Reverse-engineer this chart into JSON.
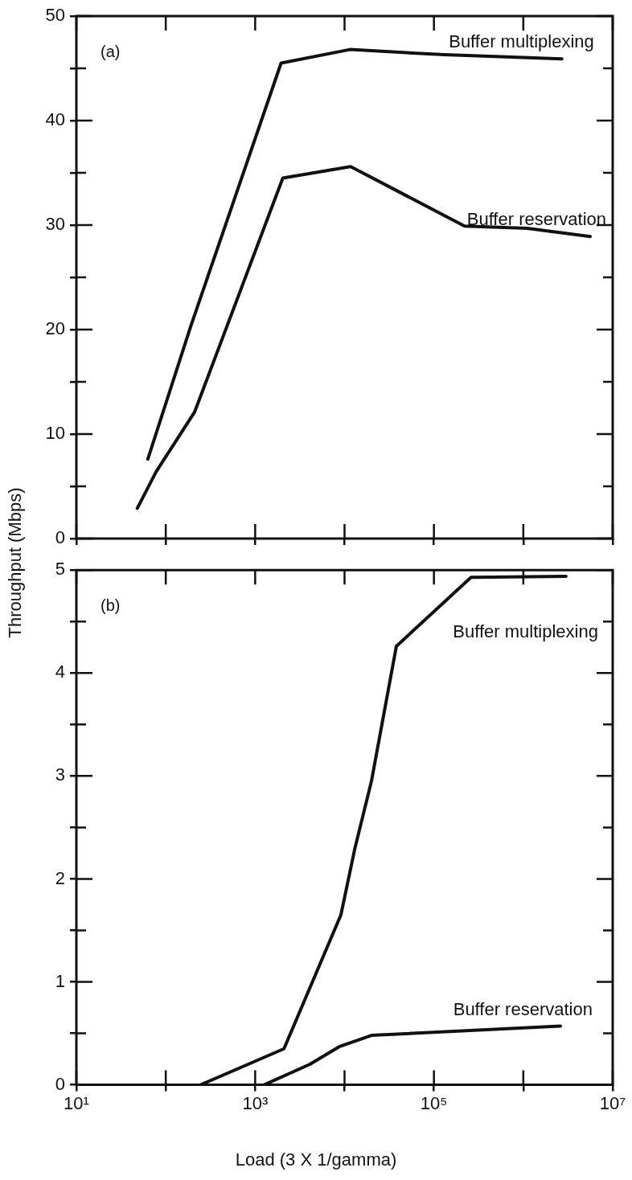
{
  "chart_data": [
    {
      "type": "line",
      "annotations": [
        "(a)"
      ],
      "ylabel": "Throughput (Mbps)",
      "log": "x",
      "grid": false,
      "legend": "right",
      "tick_labels": "y",
      "marker": "none",
      "line_style": "solid",
      "xlim": [
        10,
        10000000
      ],
      "xticks": [
        {
          "value": 10,
          "label": null
        },
        {
          "value": 100,
          "label": null
        },
        {
          "value": 1000,
          "label": null
        },
        {
          "value": 10000,
          "label": null
        },
        {
          "value": 100000,
          "label": null
        },
        {
          "value": 1000000,
          "label": null
        },
        {
          "value": 10000000,
          "label": null
        }
      ],
      "ylim": [
        0,
        50
      ],
      "yticks": [
        0,
        {
          "value": 5,
          "label": null
        },
        10,
        {
          "value": 15,
          "label": null
        },
        20,
        {
          "value": 25,
          "label": null
        },
        30,
        {
          "value": 35,
          "label": null
        },
        40,
        {
          "value": 45,
          "label": null
        },
        50
      ],
      "series": [
        {
          "name": "Buffer multiplexing",
          "color": "#111111",
          "x": [
            63,
            190,
            1950,
            11500,
            130000,
            2700000
          ],
          "values": [
            7.6,
            20.3,
            45.5,
            46.8,
            46.3,
            45.9
          ]
        },
        {
          "name": "Buffer reservation",
          "color": "#111111",
          "x": [
            48,
            78,
            210,
            2040,
            11700,
            220000,
            1100000,
            5600000
          ],
          "values": [
            2.9,
            6.4,
            12.1,
            34.5,
            35.6,
            29.9,
            29.7,
            28.9
          ]
        }
      ]
    },
    {
      "type": "line",
      "annotations": [
        "(b)"
      ],
      "xlabel": "Load (3 X 1/gamma)",
      "log": "x",
      "grid": false,
      "legend": "right",
      "marker": "none",
      "line_style": "solid",
      "xlim": [
        10,
        10000000
      ],
      "xticks": [
        {
          "value": 10,
          "label": "10¹"
        },
        {
          "value": 100,
          "label": null
        },
        {
          "value": 1000,
          "label": "10³"
        },
        {
          "value": 10000,
          "label": null
        },
        {
          "value": 100000,
          "label": "10⁵"
        },
        {
          "value": 1000000,
          "label": null
        },
        {
          "value": 10000000,
          "label": "10⁷"
        }
      ],
      "ylim": [
        0,
        5
      ],
      "yticks": [
        0,
        {
          "value": 0.5,
          "label": null
        },
        1,
        {
          "value": 1.5,
          "label": null
        },
        2,
        {
          "value": 2.5,
          "label": null
        },
        3,
        {
          "value": 3.5,
          "label": null
        },
        4,
        {
          "value": 4.5,
          "label": null
        },
        5
      ],
      "series": [
        {
          "name": "Buffer multiplexing",
          "color": "#111111",
          "x": [
            245,
            2100,
            9100,
            13000,
            20000,
            38000,
            260000,
            3000000
          ],
          "values": [
            0,
            0.35,
            1.65,
            2.29,
            2.95,
            4.26,
            4.93,
            4.94
          ]
        },
        {
          "name": "Buffer reservation",
          "color": "#111111",
          "x": [
            1260,
            4100,
            8700,
            20000,
            2600000
          ],
          "values": [
            0,
            0.2,
            0.37,
            0.48,
            0.57
          ]
        }
      ]
    }
  ]
}
